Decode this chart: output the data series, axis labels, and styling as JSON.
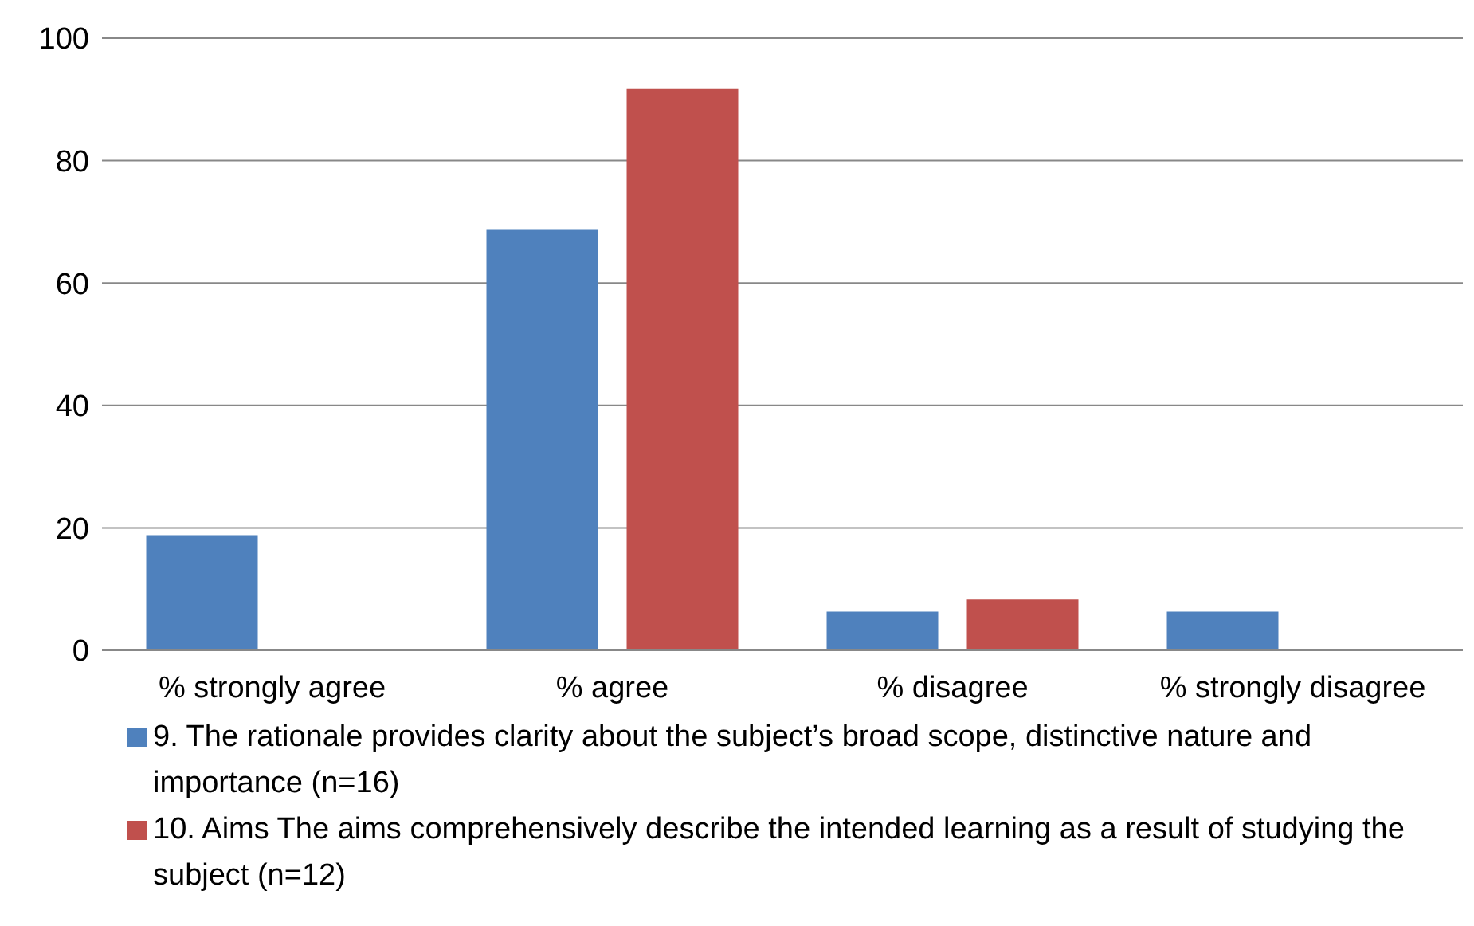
{
  "chart_data": {
    "type": "bar",
    "categories": [
      "% strongly agree",
      "% agree",
      "% disagree",
      "% strongly disagree"
    ],
    "series": [
      {
        "name": "9. The rationale provides clarity about the subject’s broad scope, distinctive nature and importance (n=16)",
        "color": "#4f81bd",
        "values": [
          18.8,
          68.8,
          6.3,
          6.3
        ]
      },
      {
        "name": "10. Aims The aims comprehensively describe the intended learning as a result of studying the subject (n=12)",
        "color": "#c0504d",
        "values": [
          0,
          91.7,
          8.3,
          0
        ]
      }
    ],
    "ylim": [
      0,
      100
    ],
    "yticks": [
      0,
      20,
      40,
      60,
      80,
      100
    ],
    "grid": "y",
    "legend": "bottom"
  }
}
